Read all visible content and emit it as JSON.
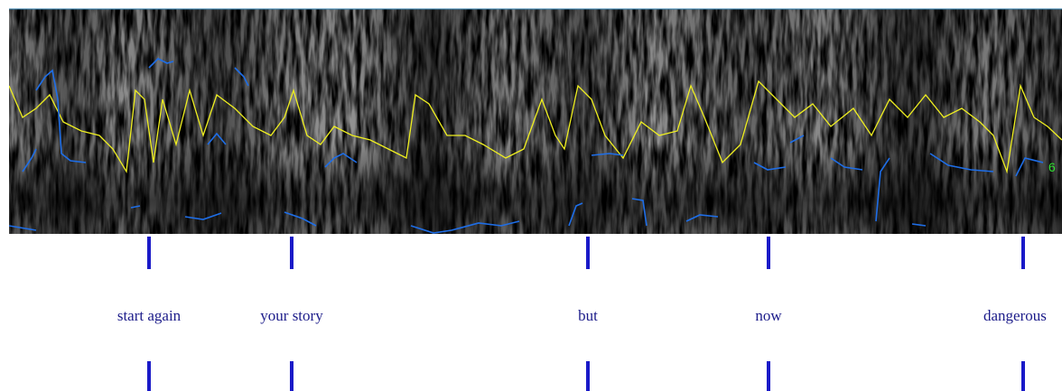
{
  "tier_labels": [
    "start again",
    "your story",
    "but",
    "now",
    "dangerous"
  ],
  "overlay_label": "6"
}
